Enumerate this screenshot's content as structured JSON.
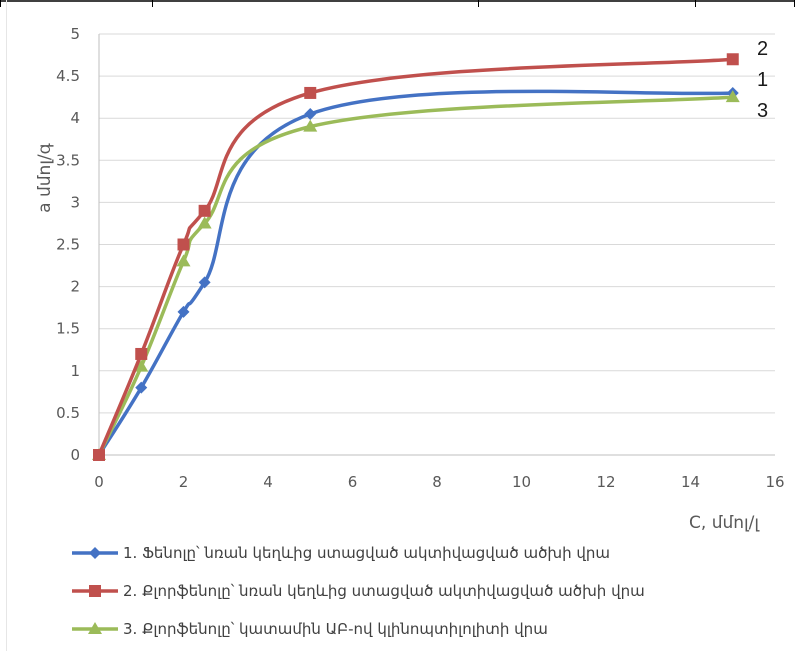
{
  "chart_data": {
    "type": "line",
    "title": "",
    "xlabel": "C, մմոլ/լ",
    "ylabel": "a մմոլ/գ",
    "xlim": [
      0,
      16
    ],
    "ylim": [
      0,
      5
    ],
    "xticks": [
      "0",
      "2",
      "4",
      "6",
      "8",
      "10",
      "12",
      "14",
      "16"
    ],
    "yticks": [
      "0",
      "0.5",
      "1",
      "1.5",
      "2",
      "2.5",
      "3",
      "3.5",
      "4",
      "4.5",
      "5"
    ],
    "grid": "horizontal",
    "legend": "bottom",
    "series": [
      {
        "name": "1. Ֆենոլը՝ նռան կեղևից ստացված ակտիվացված ածխի վրա",
        "color": "#4472C4",
        "marker": "diamond",
        "end_label": "1",
        "x": [
          0,
          1,
          2,
          2.5,
          5,
          15
        ],
        "values": [
          0,
          0.8,
          1.7,
          2.05,
          4.05,
          4.3
        ]
      },
      {
        "name": "2. Քլորֆենոլը՝ նռան կեղևից ստացված ակտիվացված ածխի վրա",
        "color": "#C0504D",
        "marker": "square",
        "end_label": "2",
        "x": [
          0,
          1,
          2,
          2.5,
          5,
          15
        ],
        "values": [
          0,
          1.2,
          2.5,
          2.9,
          4.3,
          4.7
        ]
      },
      {
        "name": "3. Քլորֆենոլը՝ կատամին ԱԲ-ով կլինոպտիլոլիտի վրա",
        "color": "#9BBB59",
        "marker": "triangle",
        "end_label": "3",
        "x": [
          0,
          1,
          2,
          2.5,
          5,
          15
        ],
        "values": [
          0,
          1.05,
          2.3,
          2.75,
          3.9,
          4.25
        ]
      }
    ]
  }
}
